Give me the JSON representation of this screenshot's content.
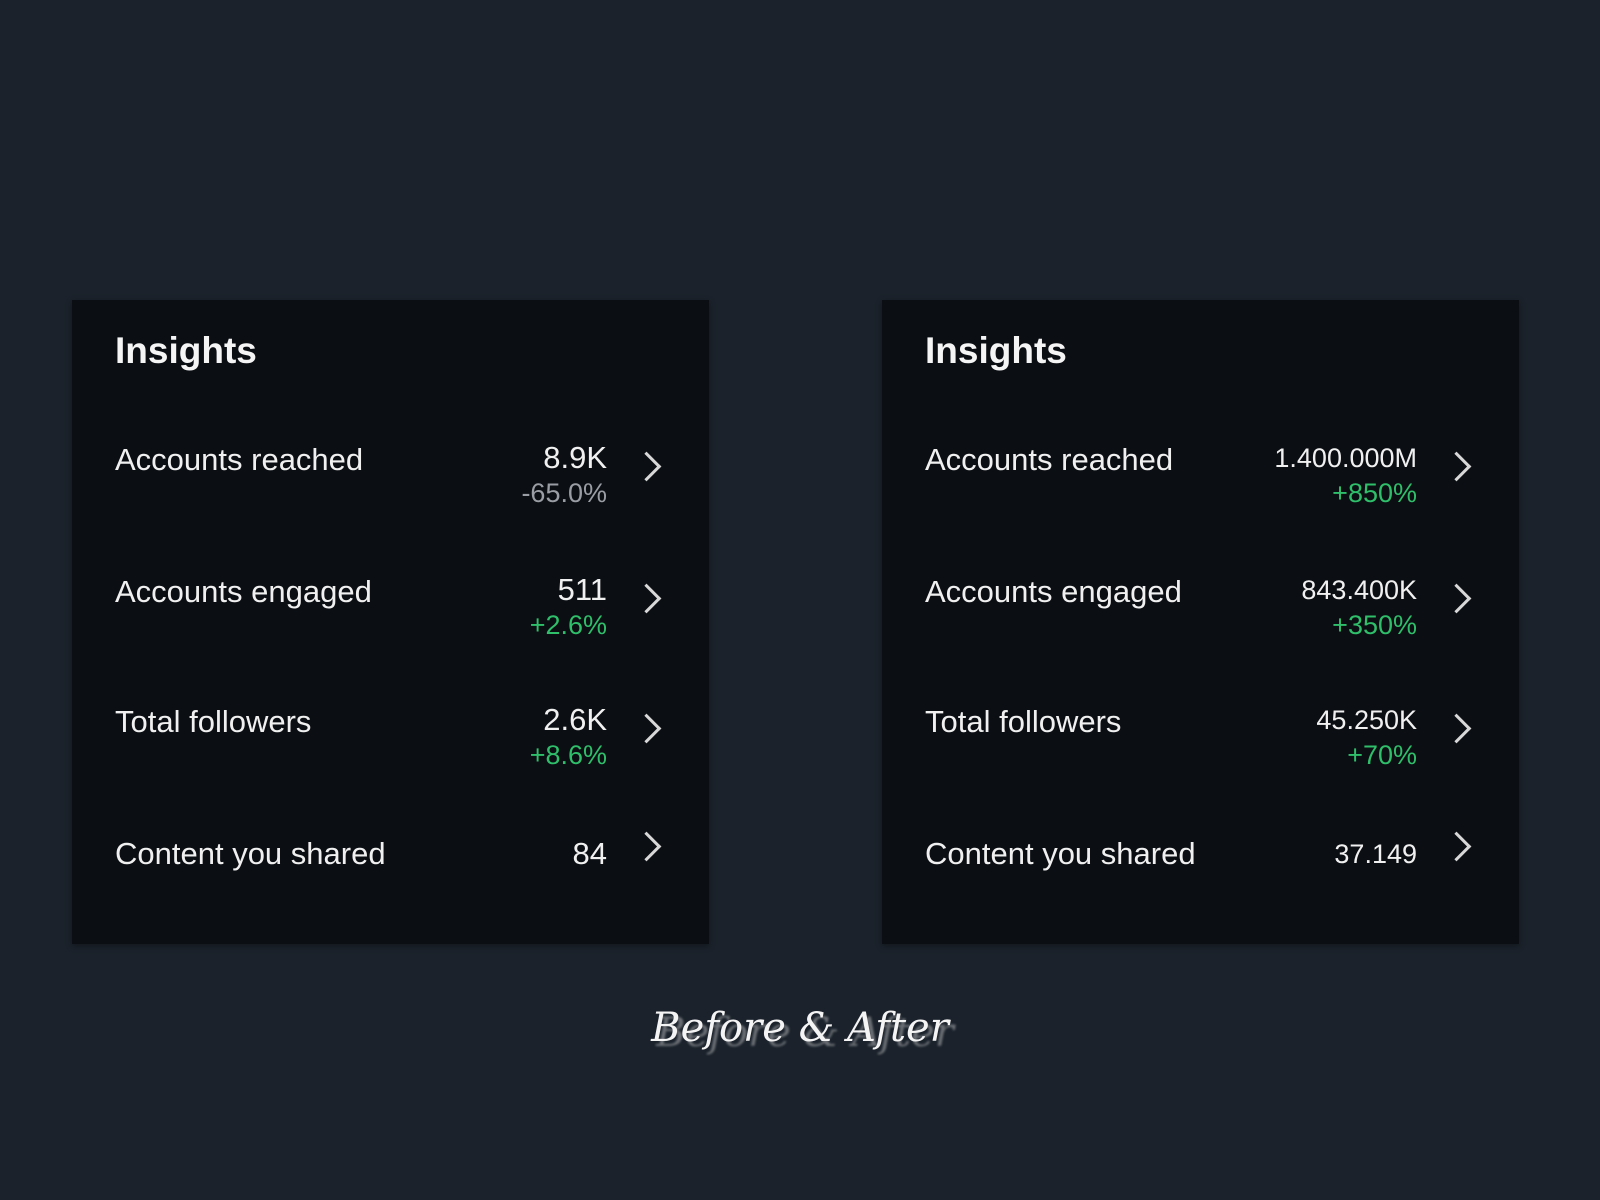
{
  "colors": {
    "background": "#1b222b",
    "panel": "#0b0e13",
    "positive": "#2fbf6a",
    "neutral": "#9a9ea4",
    "text": "#f0f0f0"
  },
  "panels": [
    {
      "title": "Insights",
      "rows": [
        {
          "label": "Accounts reached",
          "value": "8.9K",
          "change": "-65.0%",
          "change_color": "#9a9ea4"
        },
        {
          "label": "Accounts engaged",
          "value": "511",
          "change": "+2.6%",
          "change_color": "#2fbf6a"
        },
        {
          "label": "Total followers",
          "value": "2.6K",
          "change": "+8.6%",
          "change_color": "#2fbf6a"
        },
        {
          "label": "Content you shared",
          "value": "84",
          "change": null
        }
      ]
    },
    {
      "title": "Insights",
      "rows": [
        {
          "label": "Accounts reached",
          "value": "1.400.000M",
          "change": "+850%",
          "change_color": "#2fbf6a"
        },
        {
          "label": "Accounts engaged",
          "value": "843.400K",
          "change": "+350%",
          "change_color": "#2fbf6a"
        },
        {
          "label": "Total followers",
          "value": "45.250K",
          "change": "+70%",
          "change_color": "#2fbf6a"
        },
        {
          "label": "Content you shared",
          "value": "37.149",
          "change": null
        }
      ]
    }
  ],
  "caption": "Before & After",
  "icons": {
    "row_chevron": "chevron-right-icon"
  }
}
